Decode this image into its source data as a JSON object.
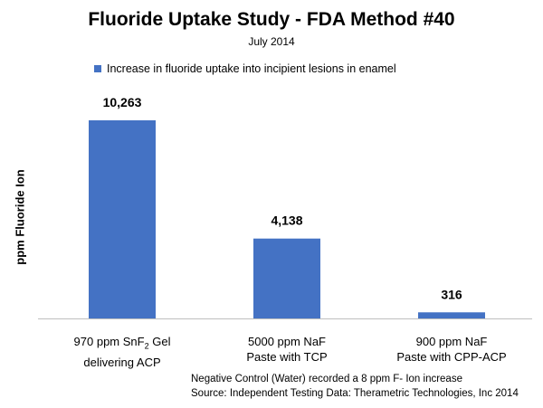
{
  "chart_data": {
    "type": "bar",
    "title": "Fluoride Uptake Study - FDA Method #40",
    "subtitle": "July 2014",
    "ylabel": "ppm  Fluoride Ion",
    "xlabel": "",
    "ylim": [
      0,
      10263
    ],
    "grid": false,
    "legend_position": "top",
    "series": [
      {
        "name": "Increase in fluoride uptake into incipient lesions in enamel",
        "color": "#4472C4",
        "values": [
          10263,
          4138,
          316
        ]
      }
    ],
    "categories": [
      {
        "line1_prefix": "970 ppm SnF",
        "line1_sub": "2",
        "line1_suffix": " Gel",
        "line2": "delivering ACP"
      },
      {
        "line1_prefix": "5000 ppm NaF",
        "line1_sub": "",
        "line1_suffix": "",
        "line2": "Paste with TCP"
      },
      {
        "line1_prefix": "900 ppm NaF",
        "line1_sub": "",
        "line1_suffix": "",
        "line2": "Paste with CPP-ACP"
      }
    ],
    "data_labels": [
      "10,263",
      "4,138",
      "316"
    ],
    "footnotes": [
      "Negative Control (Water) recorded a  8 ppm F- Ion increase",
      "Source: Independent Testing Data: Therametric Technologies, Inc 2014"
    ]
  }
}
